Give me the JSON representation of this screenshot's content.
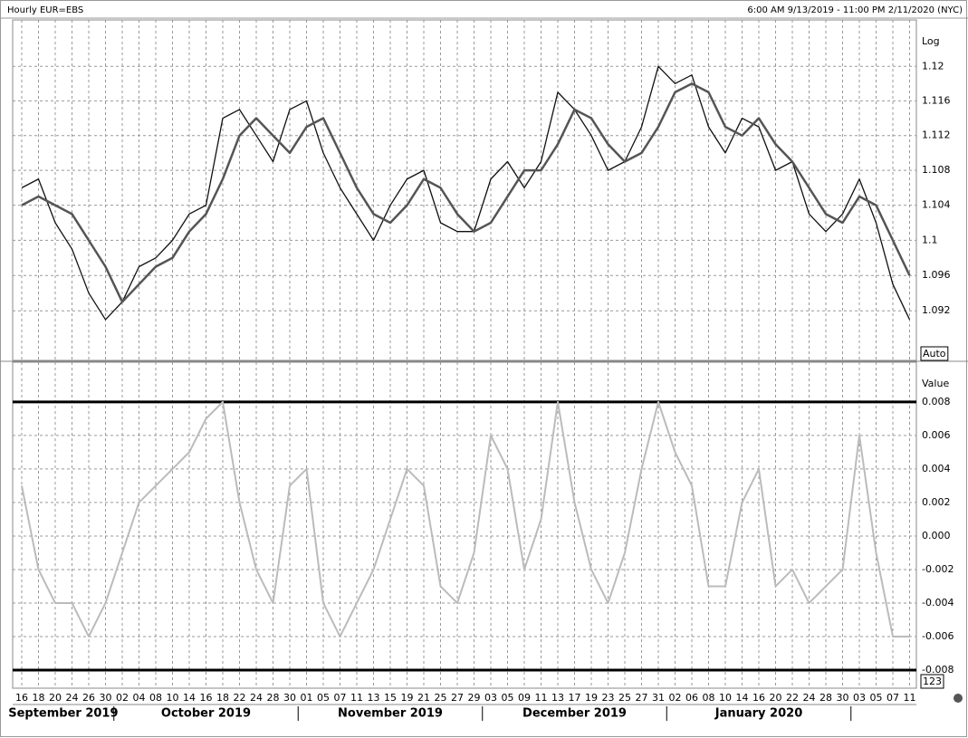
{
  "header": {
    "title": "Hourly EUR=EBS",
    "range": "6:00 AM 9/13/2019 - 11:00 PM 2/11/2020 (NYC)"
  },
  "chart_data": [
    {
      "type": "line",
      "scale_label": "Log",
      "mode_label": "Auto",
      "log_scale": true,
      "grid": true,
      "categories": [
        "16",
        "18",
        "20",
        "24",
        "26",
        "30",
        "02",
        "04",
        "08",
        "10",
        "14",
        "16",
        "18",
        "22",
        "24",
        "28",
        "30",
        "01",
        "05",
        "07",
        "11",
        "13",
        "15",
        "19",
        "21",
        "25",
        "27",
        "29",
        "03",
        "05",
        "09",
        "11",
        "13",
        "17",
        "19",
        "23",
        "25",
        "27",
        "31",
        "02",
        "06",
        "08",
        "10",
        "14",
        "16",
        "20",
        "22",
        "24",
        "28",
        "30",
        "03",
        "05",
        "07",
        "11"
      ],
      "months": [
        "September 2019",
        "October 2019",
        "November 2019",
        "December 2019",
        "January 2020"
      ],
      "ylim": [
        1.0864,
        1.1254
      ],
      "yticks": [
        1.092,
        1.096,
        1.1,
        1.104,
        1.108,
        1.112,
        1.116,
        1.12
      ],
      "series": [
        {
          "color": "#111111",
          "width": 1.3,
          "values": [
            1.106,
            1.107,
            1.102,
            1.099,
            1.094,
            1.091,
            1.093,
            1.097,
            1.098,
            1.1,
            1.103,
            1.104,
            1.114,
            1.115,
            1.112,
            1.109,
            1.115,
            1.116,
            1.11,
            1.106,
            1.103,
            1.1,
            1.104,
            1.107,
            1.108,
            1.102,
            1.101,
            1.101,
            1.107,
            1.109,
            1.106,
            1.109,
            1.117,
            1.115,
            1.112,
            1.108,
            1.109,
            1.113,
            1.12,
            1.118,
            1.119,
            1.113,
            1.11,
            1.114,
            1.113,
            1.108,
            1.109,
            1.103,
            1.101,
            1.103,
            1.107,
            1.102,
            1.095,
            1.091
          ]
        },
        {
          "color": "#555555",
          "width": 2.5,
          "values": [
            1.104,
            1.105,
            1.104,
            1.103,
            1.1,
            1.097,
            1.093,
            1.095,
            1.097,
            1.098,
            1.101,
            1.103,
            1.107,
            1.112,
            1.114,
            1.112,
            1.11,
            1.113,
            1.114,
            1.11,
            1.106,
            1.103,
            1.102,
            1.104,
            1.107,
            1.106,
            1.103,
            1.101,
            1.102,
            1.105,
            1.108,
            1.108,
            1.111,
            1.115,
            1.114,
            1.111,
            1.109,
            1.11,
            1.113,
            1.117,
            1.118,
            1.117,
            1.113,
            1.112,
            1.114,
            1.111,
            1.109,
            1.106,
            1.103,
            1.102,
            1.105,
            1.104,
            1.1,
            1.096
          ]
        }
      ]
    },
    {
      "type": "line",
      "scale_label": "Value",
      "mode_label": "123",
      "grid": true,
      "ylim": [
        -0.00908,
        0.01037
      ],
      "yticks": [
        -0.008,
        -0.006,
        -0.004,
        -0.002,
        {
          "value": 0,
          "label": "0.000"
        },
        0.002,
        0.004,
        0.006,
        0.008
      ],
      "threshold_lines": [
        0.008,
        -0.008
      ],
      "series": [
        {
          "color": "#bbbbbb",
          "width": 2,
          "values": [
            0.003,
            -0.002,
            -0.004,
            -0.004,
            -0.006,
            -0.004,
            -0.001,
            0.002,
            0.003,
            0.004,
            0.005,
            0.007,
            0.008,
            0.002,
            -0.002,
            -0.004,
            0.003,
            0.004,
            -0.004,
            -0.006,
            -0.004,
            -0.002,
            0.001,
            0.004,
            0.003,
            -0.003,
            -0.004,
            -0.001,
            0.006,
            0.004,
            -0.002,
            0.001,
            0.008,
            0.002,
            -0.002,
            -0.004,
            -0.001,
            0.004,
            0.008,
            0.005,
            0.003,
            -0.003,
            -0.003,
            0.002,
            0.004,
            -0.003,
            -0.002,
            -0.004,
            -0.003,
            -0.002,
            0.006,
            -0.001,
            -0.006,
            -0.006
          ]
        }
      ]
    }
  ]
}
